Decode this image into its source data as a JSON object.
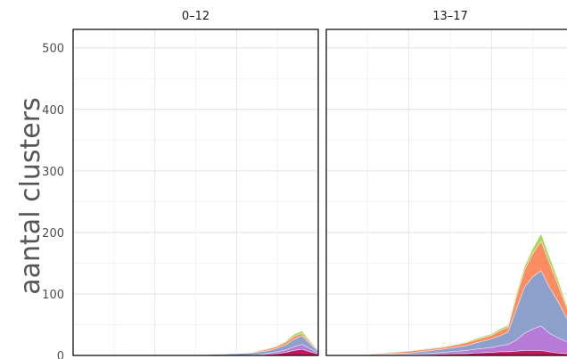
{
  "chart_data": {
    "type": "area",
    "stacked": true,
    "ylabel": "aantal clusters",
    "ylim": [
      0,
      530
    ],
    "y_ticks": [
      0,
      100,
      200,
      300,
      400,
      500
    ],
    "y_tick_labels": [
      "0",
      "100",
      "200",
      "300",
      "400",
      "500"
    ],
    "xlim": [
      0,
      30
    ],
    "grid": true,
    "legend": "none",
    "series_colors": [
      "#c2185b",
      "#b57bd6",
      "#8da0cb",
      "#fc8d62",
      "#a6d854"
    ],
    "panels": [
      {
        "label": "0–12",
        "x": [
          0,
          10,
          15,
          18,
          20,
          22,
          23,
          24,
          25,
          26,
          27,
          28,
          29,
          30
        ],
        "series": [
          {
            "values": [
              0,
              0,
              0,
              0,
              0,
              0,
              1,
              2,
              3,
              5,
              8,
              10,
              6,
              2
            ]
          },
          {
            "values": [
              0,
              0,
              0,
              0,
              0,
              1,
              1,
              2,
              3,
              4,
              6,
              8,
              5,
              2
            ]
          },
          {
            "values": [
              0,
              0,
              1,
              2,
              3,
              3,
              4,
              4,
              6,
              8,
              12,
              14,
              8,
              3
            ]
          },
          {
            "values": [
              0,
              0,
              0,
              0,
              0,
              1,
              2,
              3,
              3,
              4,
              5,
              4,
              3,
              1
            ]
          },
          {
            "values": [
              0,
              0,
              0,
              0,
              0,
              0,
              1,
              1,
              1,
              2,
              3,
              4,
              2,
              1
            ]
          }
        ]
      },
      {
        "label": "13–17",
        "x": [
          0,
          5,
          8,
          10,
          12,
          14,
          16,
          17,
          18,
          20,
          21,
          22,
          23,
          24,
          25,
          26,
          27,
          28,
          29,
          30
        ],
        "series": [
          {
            "values": [
              0,
              0,
              1,
              1,
              1,
              2,
              3,
              3,
              4,
              5,
              6,
              6,
              7,
              8,
              8,
              8,
              6,
              4,
              3,
              2
            ]
          },
          {
            "values": [
              0,
              0,
              1,
              1,
              2,
              3,
              4,
              5,
              6,
              8,
              10,
              12,
              18,
              28,
              35,
              40,
              30,
              25,
              20,
              14
            ]
          },
          {
            "values": [
              0,
              0,
              1,
              2,
              4,
              5,
              7,
              8,
              10,
              14,
              16,
              20,
              50,
              75,
              85,
              90,
              75,
              60,
              40,
              25
            ]
          },
          {
            "values": [
              0,
              1,
              2,
              3,
              3,
              3,
              4,
              5,
              5,
              6,
              8,
              8,
              20,
              28,
              38,
              48,
              40,
              28,
              18,
              10
            ]
          },
          {
            "values": [
              0,
              0,
              0,
              0,
              1,
              1,
              1,
              1,
              2,
              2,
              3,
              3,
              5,
              6,
              8,
              12,
              10,
              8,
              5,
              3
            ]
          }
        ]
      }
    ]
  }
}
